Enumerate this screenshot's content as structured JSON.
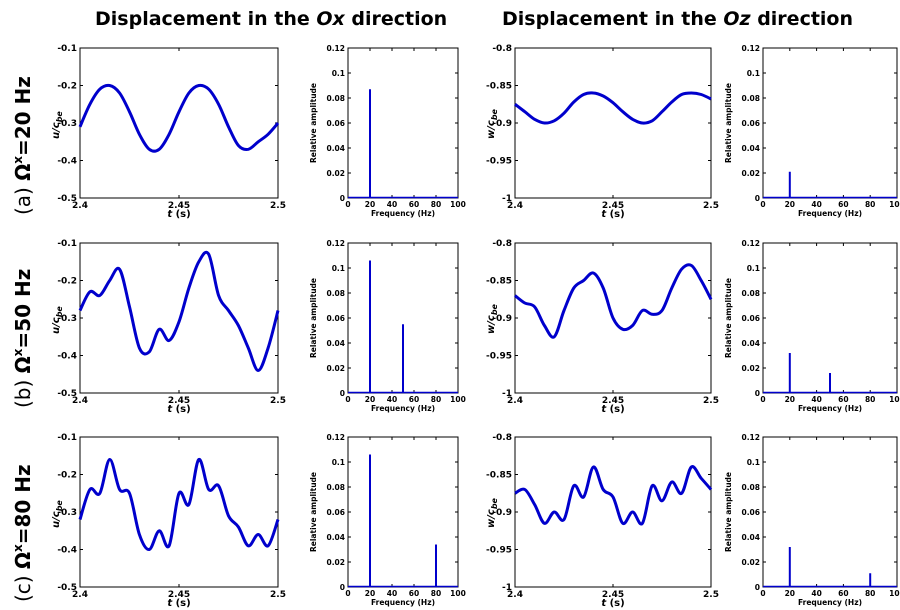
{
  "titles": {
    "ox": {
      "prefix": "Displacement in the ",
      "axis": "Ox",
      "suffix": " direction"
    },
    "oz": {
      "prefix": "Displacement in the ",
      "axis": "Oz",
      "suffix": " direction"
    }
  },
  "rows": [
    {
      "prefix": "(a) ",
      "label": "Ω",
      "sup": "x",
      "value": "=20 Hz"
    },
    {
      "prefix": "(b) ",
      "label": "Ω",
      "sup": "x",
      "value": "=50 Hz"
    },
    {
      "prefix": "(c) ",
      "label": "Ω",
      "sup": "x",
      "value": "=80 Hz"
    }
  ],
  "style": {
    "line_color": "#0000cc"
  },
  "chart_data": [
    {
      "id": "a-ux",
      "row": 0,
      "col": 0,
      "type": "line",
      "xlabel": "t (s)",
      "ylabel": "u/c_be",
      "xlim": [
        2.4,
        2.5
      ],
      "ylim": [
        -0.5,
        -0.1
      ],
      "xticks": [
        "2.4",
        "2.45",
        "2.5"
      ],
      "yticks": [
        "-0.1",
        "-0.2",
        "-0.3",
        "-0.4",
        "-0.5"
      ],
      "series": [
        {
          "x": [
            2.4,
            2.405,
            2.41,
            2.415,
            2.42,
            2.425,
            2.43,
            2.435,
            2.44,
            2.445,
            2.45,
            2.455,
            2.46,
            2.465,
            2.47,
            2.475,
            2.48,
            2.485,
            2.49,
            2.495,
            2.5
          ],
          "y": [
            -0.31,
            -0.25,
            -0.21,
            -0.2,
            -0.22,
            -0.27,
            -0.33,
            -0.37,
            -0.37,
            -0.33,
            -0.27,
            -0.22,
            -0.2,
            -0.21,
            -0.25,
            -0.31,
            -0.36,
            -0.37,
            -0.35,
            -0.33,
            -0.3
          ]
        }
      ]
    },
    {
      "id": "a-ux-fft",
      "row": 0,
      "col": 1,
      "type": "bar",
      "xlabel": "Frequency (Hz)",
      "ylabel": "Relative amplitude",
      "xlim": [
        0,
        100
      ],
      "ylim": [
        0,
        0.12
      ],
      "xticks": [
        "0",
        "20",
        "40",
        "60",
        "80",
        "100"
      ],
      "yticks": [
        "0",
        "0.02",
        "0.04",
        "0.06",
        "0.08",
        "0.1",
        "0.12"
      ],
      "series": [
        {
          "x": [
            20
          ],
          "y": [
            0.087
          ]
        }
      ]
    },
    {
      "id": "a-wz",
      "row": 0,
      "col": 2,
      "type": "line",
      "xlabel": "t (s)",
      "ylabel": "w/c_be",
      "xlim": [
        2.4,
        2.5
      ],
      "ylim": [
        -1.0,
        -0.8
      ],
      "xticks": [
        "2.4",
        "2.45",
        "2.5"
      ],
      "yticks": [
        "-0.8",
        "-0.85",
        "-0.9",
        "-0.95",
        "-1"
      ],
      "series": [
        {
          "x": [
            2.4,
            2.405,
            2.41,
            2.415,
            2.42,
            2.425,
            2.43,
            2.435,
            2.44,
            2.445,
            2.45,
            2.455,
            2.46,
            2.465,
            2.47,
            2.475,
            2.48,
            2.485,
            2.49,
            2.495,
            2.5
          ],
          "y": [
            -0.875,
            -0.885,
            -0.895,
            -0.9,
            -0.897,
            -0.887,
            -0.872,
            -0.862,
            -0.86,
            -0.864,
            -0.873,
            -0.885,
            -0.895,
            -0.9,
            -0.897,
            -0.885,
            -0.872,
            -0.862,
            -0.86,
            -0.862,
            -0.868
          ]
        }
      ]
    },
    {
      "id": "a-wz-fft",
      "row": 0,
      "col": 3,
      "type": "bar",
      "xlabel": "Frequency (Hz)",
      "ylabel": "Relative amplitude",
      "xlim": [
        0,
        100
      ],
      "ylim": [
        0,
        0.12
      ],
      "xticks": [
        "0",
        "20",
        "40",
        "60",
        "80",
        "100"
      ],
      "yticks": [
        "0",
        "0.02",
        "0.04",
        "0.06",
        "0.08",
        "0.1",
        "0.12"
      ],
      "series": [
        {
          "x": [
            20
          ],
          "y": [
            0.021
          ]
        }
      ]
    },
    {
      "id": "b-ux",
      "row": 1,
      "col": 0,
      "type": "line",
      "xlabel": "t (s)",
      "ylabel": "u/c_be",
      "xlim": [
        2.4,
        2.5
      ],
      "ylim": [
        -0.5,
        -0.1
      ],
      "xticks": [
        "2.4",
        "2.45",
        "2.5"
      ],
      "yticks": [
        "-0.1",
        "-0.2",
        "-0.3",
        "-0.4",
        "-0.5"
      ],
      "series": [
        {
          "x": [
            2.4,
            2.405,
            2.41,
            2.415,
            2.42,
            2.425,
            2.43,
            2.435,
            2.44,
            2.445,
            2.45,
            2.455,
            2.46,
            2.465,
            2.47,
            2.475,
            2.48,
            2.485,
            2.49,
            2.495,
            2.5
          ],
          "y": [
            -0.28,
            -0.23,
            -0.24,
            -0.2,
            -0.17,
            -0.27,
            -0.38,
            -0.39,
            -0.33,
            -0.36,
            -0.31,
            -0.22,
            -0.15,
            -0.13,
            -0.24,
            -0.28,
            -0.32,
            -0.38,
            -0.44,
            -0.38,
            -0.28
          ]
        }
      ]
    },
    {
      "id": "b-ux-fft",
      "row": 1,
      "col": 1,
      "type": "bar",
      "xlabel": "Frequency (Hz)",
      "ylabel": "Relative amplitude",
      "xlim": [
        0,
        100
      ],
      "ylim": [
        0,
        0.12
      ],
      "xticks": [
        "0",
        "20",
        "40",
        "60",
        "80",
        "100"
      ],
      "yticks": [
        "0",
        "0.02",
        "0.04",
        "0.06",
        "0.08",
        "0.1",
        "0.12"
      ],
      "series": [
        {
          "x": [
            20,
            50
          ],
          "y": [
            0.106,
            0.055
          ]
        }
      ]
    },
    {
      "id": "b-wz",
      "row": 1,
      "col": 2,
      "type": "line",
      "xlabel": "t (s)",
      "ylabel": "w/c_be",
      "xlim": [
        2.4,
        2.5
      ],
      "ylim": [
        -1.0,
        -0.8
      ],
      "xticks": [
        "2.4",
        "2.45",
        "2.5"
      ],
      "yticks": [
        "-0.8",
        "-0.85",
        "-0.9",
        "-0.95",
        "-1"
      ],
      "series": [
        {
          "x": [
            2.4,
            2.405,
            2.41,
            2.415,
            2.42,
            2.425,
            2.43,
            2.435,
            2.44,
            2.445,
            2.45,
            2.455,
            2.46,
            2.465,
            2.47,
            2.475,
            2.48,
            2.485,
            2.49,
            2.495,
            2.5
          ],
          "y": [
            -0.87,
            -0.88,
            -0.885,
            -0.91,
            -0.925,
            -0.89,
            -0.86,
            -0.85,
            -0.84,
            -0.86,
            -0.9,
            -0.915,
            -0.91,
            -0.89,
            -0.895,
            -0.89,
            -0.86,
            -0.835,
            -0.83,
            -0.85,
            -0.875
          ]
        }
      ]
    },
    {
      "id": "b-wz-fft",
      "row": 1,
      "col": 3,
      "type": "bar",
      "xlabel": "Frequency (Hz)",
      "ylabel": "Relative amplitude",
      "xlim": [
        0,
        100
      ],
      "ylim": [
        0,
        0.12
      ],
      "xticks": [
        "0",
        "20",
        "40",
        "60",
        "80",
        "100"
      ],
      "yticks": [
        "0",
        "0.02",
        "0.04",
        "0.06",
        "0.08",
        "0.1",
        "0.12"
      ],
      "series": [
        {
          "x": [
            20,
            50
          ],
          "y": [
            0.032,
            0.016
          ]
        }
      ]
    },
    {
      "id": "c-ux",
      "row": 2,
      "col": 0,
      "type": "line",
      "xlabel": "t (s)",
      "ylabel": "u/c_be",
      "xlim": [
        2.4,
        2.5
      ],
      "ylim": [
        -0.5,
        -0.1
      ],
      "xticks": [
        "2.4",
        "2.45",
        "2.5"
      ],
      "yticks": [
        "-0.1",
        "-0.2",
        "-0.3",
        "-0.4",
        "-0.5"
      ],
      "series": [
        {
          "x": [
            2.4,
            2.405,
            2.41,
            2.415,
            2.42,
            2.425,
            2.43,
            2.435,
            2.44,
            2.445,
            2.45,
            2.455,
            2.46,
            2.465,
            2.47,
            2.475,
            2.48,
            2.485,
            2.49,
            2.495,
            2.5
          ],
          "y": [
            -0.32,
            -0.24,
            -0.25,
            -0.16,
            -0.24,
            -0.25,
            -0.36,
            -0.4,
            -0.35,
            -0.39,
            -0.25,
            -0.28,
            -0.16,
            -0.24,
            -0.23,
            -0.31,
            -0.34,
            -0.39,
            -0.36,
            -0.39,
            -0.32
          ]
        }
      ]
    },
    {
      "id": "c-ux-fft",
      "row": 2,
      "col": 1,
      "type": "bar",
      "xlabel": "Frequency (Hz)",
      "ylabel": "Relative amplitude",
      "xlim": [
        0,
        100
      ],
      "ylim": [
        0,
        0.12
      ],
      "xticks": [
        "0",
        "20",
        "40",
        "60",
        "80",
        "100"
      ],
      "yticks": [
        "0",
        "0.02",
        "0.04",
        "0.06",
        "0.08",
        "0.1",
        "0.12"
      ],
      "series": [
        {
          "x": [
            20,
            80
          ],
          "y": [
            0.106,
            0.034
          ]
        }
      ]
    },
    {
      "id": "c-wz",
      "row": 2,
      "col": 2,
      "type": "line",
      "xlabel": "t (s)",
      "ylabel": "w/c_be",
      "xlim": [
        2.4,
        2.5
      ],
      "ylim": [
        -1.0,
        -0.8
      ],
      "xticks": [
        "2.4",
        "2.45",
        "2.5"
      ],
      "yticks": [
        "-0.8",
        "-0.85",
        "-0.9",
        "-0.95",
        "-1"
      ],
      "series": [
        {
          "x": [
            2.4,
            2.405,
            2.41,
            2.415,
            2.42,
            2.425,
            2.43,
            2.435,
            2.44,
            2.445,
            2.45,
            2.455,
            2.46,
            2.465,
            2.47,
            2.475,
            2.48,
            2.485,
            2.49,
            2.495,
            2.5
          ],
          "y": [
            -0.875,
            -0.87,
            -0.89,
            -0.915,
            -0.9,
            -0.91,
            -0.865,
            -0.88,
            -0.84,
            -0.87,
            -0.88,
            -0.915,
            -0.9,
            -0.915,
            -0.865,
            -0.885,
            -0.86,
            -0.875,
            -0.84,
            -0.855,
            -0.87
          ]
        }
      ]
    },
    {
      "id": "c-wz-fft",
      "row": 2,
      "col": 3,
      "type": "bar",
      "xlabel": "Frequency (Hz)",
      "ylabel": "Relative amplitude",
      "xlim": [
        0,
        100
      ],
      "ylim": [
        0,
        0.12
      ],
      "xticks": [
        "0",
        "20",
        "40",
        "60",
        "80",
        "100"
      ],
      "yticks": [
        "0",
        "0.02",
        "0.04",
        "0.06",
        "0.08",
        "0.1",
        "0.12"
      ],
      "series": [
        {
          "x": [
            20,
            80
          ],
          "y": [
            0.032,
            0.011
          ]
        }
      ]
    }
  ]
}
